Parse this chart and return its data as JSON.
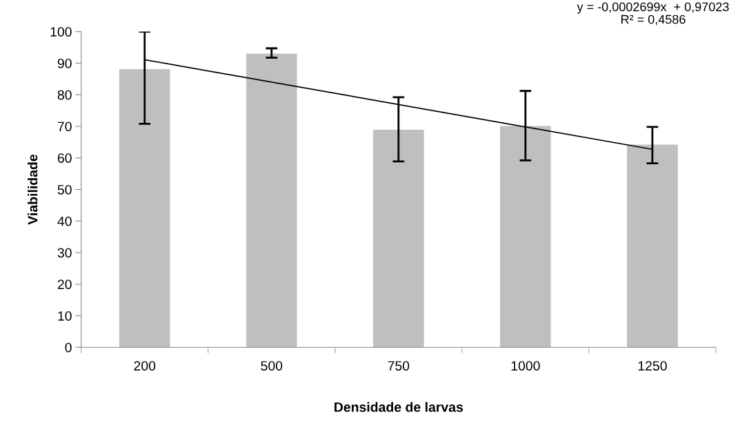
{
  "chart_data": {
    "type": "bar",
    "xlabel": "Densidade de larvas",
    "ylabel": "Viabilidade",
    "categories": [
      "200",
      "500",
      "750",
      "1000",
      "1250"
    ],
    "series": [
      {
        "color": "#bfbfbf",
        "values": [
          88.1,
          93.0,
          68.9,
          70.1,
          64.2
        ],
        "errors": [
          [
            70.8,
            100
          ],
          [
            91.7,
            94.7
          ],
          [
            58.9,
            79.2
          ],
          [
            59.2,
            81.2
          ],
          [
            58.3,
            69.8
          ]
        ]
      },
      {
        "type": "line",
        "color": "#000000",
        "values": [
          91.1,
          null,
          null,
          null,
          62.7
        ]
      }
    ],
    "ylim": [
      0,
      100
    ],
    "yticks": [
      0,
      10,
      20,
      30,
      40,
      50,
      60,
      70,
      80,
      90,
      100
    ],
    "annotations": [
      "y = -0,0002699x  + 0,97023\nR² = 0,4586"
    ],
    "grid": false,
    "legend": false
  }
}
